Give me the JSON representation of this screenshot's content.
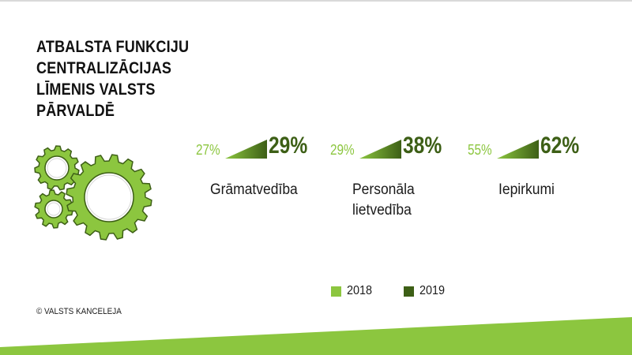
{
  "title_lines": [
    "ATBALSTA FUNKCIJU",
    "CENTRALIZĀCIJAS",
    "LĪMENIS VALSTS",
    "PĀRVALDĒ"
  ],
  "copyright": "© VALSTS KANCELEJA",
  "colors": {
    "light_green": "#8cc63f",
    "dark_green": "#3d5f16",
    "gear_fill": "#8cc63f",
    "gear_stroke": "#3d5f16"
  },
  "icons": [
    "gears-icon",
    "ramp-icon"
  ],
  "chart_data": {
    "type": "bar",
    "title": "ATBALSTA FUNKCIJU CENTRALIZĀCIJAS LĪMENIS VALSTS PĀRVALDĒ",
    "categories": [
      "Grāmatvedība",
      "Personāla lietvedība",
      "Iepirkumi"
    ],
    "category_lines": [
      [
        "Grāmatvedība"
      ],
      [
        "Personāla",
        "lietvedība"
      ],
      [
        "Iepirkumi"
      ]
    ],
    "series": [
      {
        "name": "2018",
        "values": [
          27,
          29,
          55
        ],
        "labels": [
          "27%",
          "29%",
          "55%"
        ],
        "color": "#8cc63f"
      },
      {
        "name": "2019",
        "values": [
          29,
          38,
          62
        ],
        "labels": [
          "29%",
          "38%",
          "62%"
        ],
        "color": "#3d5f16"
      }
    ],
    "unit": "%",
    "legend_position": "bottom",
    "grid": false
  }
}
